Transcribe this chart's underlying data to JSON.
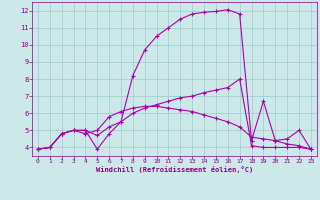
{
  "xlabel": "Windchill (Refroidissement éolien,°C)",
  "bg_color": "#cce8e8",
  "line_color": "#aa00aa",
  "grid_color": "#99cccc",
  "xlim": [
    -0.5,
    23.5
  ],
  "ylim": [
    3.5,
    12.5
  ],
  "yticks": [
    4,
    5,
    6,
    7,
    8,
    9,
    10,
    11,
    12
  ],
  "xticks": [
    0,
    1,
    2,
    3,
    4,
    5,
    6,
    7,
    8,
    9,
    10,
    11,
    12,
    13,
    14,
    15,
    16,
    17,
    18,
    19,
    20,
    21,
    22,
    23
  ],
  "lines": [
    {
      "x": [
        0,
        1,
        2,
        3,
        4,
        5,
        6,
        7,
        8,
        9,
        10,
        11,
        12,
        13,
        14,
        15,
        16,
        17,
        18,
        19,
        20,
        21,
        22,
        23
      ],
      "y": [
        3.9,
        4.0,
        4.8,
        5.0,
        5.0,
        4.7,
        5.2,
        5.5,
        8.2,
        9.7,
        10.5,
        11.0,
        11.5,
        11.8,
        11.9,
        11.95,
        12.05,
        11.8,
        4.4,
        6.7,
        4.4,
        4.5,
        5.0,
        3.9
      ]
    },
    {
      "x": [
        0,
        1,
        2,
        3,
        4,
        5,
        6,
        7,
        8,
        9,
        10,
        11,
        12,
        13,
        14,
        15,
        16,
        17,
        18,
        19,
        20,
        21,
        22,
        23
      ],
      "y": [
        3.9,
        4.0,
        4.8,
        5.0,
        5.0,
        3.9,
        4.8,
        5.5,
        6.0,
        6.3,
        6.5,
        6.7,
        6.9,
        7.0,
        7.2,
        7.35,
        7.5,
        8.0,
        4.1,
        4.0,
        4.0,
        4.0,
        4.0,
        3.9
      ]
    },
    {
      "x": [
        0,
        1,
        2,
        3,
        4,
        5,
        6,
        7,
        8,
        9,
        10,
        11,
        12,
        13,
        14,
        15,
        16,
        17,
        18,
        19,
        20,
        21,
        22,
        23
      ],
      "y": [
        3.9,
        4.0,
        4.8,
        5.0,
        4.8,
        5.0,
        5.8,
        6.1,
        6.3,
        6.4,
        6.4,
        6.3,
        6.2,
        6.1,
        5.9,
        5.7,
        5.5,
        5.2,
        4.6,
        4.5,
        4.4,
        4.2,
        4.1,
        3.9
      ]
    }
  ]
}
